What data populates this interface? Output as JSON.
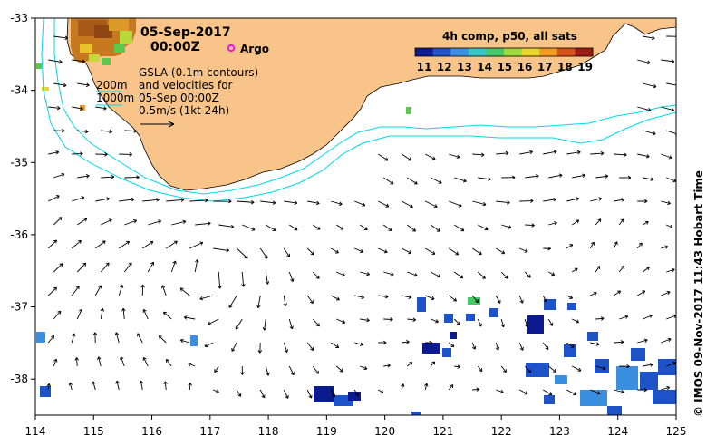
{
  "title": {
    "date": "05-Sep-2017",
    "time": "00:00Z"
  },
  "argo_label": "Argo",
  "colorbar": {
    "title": "4h comp, p50, all sats",
    "labels": [
      "11",
      "12",
      "13",
      "14",
      "15",
      "16",
      "17",
      "18",
      "19"
    ],
    "colors": [
      "#0b1a8c",
      "#1d52c8",
      "#3a8fe0",
      "#34c4c4",
      "#45c86a",
      "#9bd93c",
      "#e8d528",
      "#f39a1f",
      "#d84f18",
      "#9c1c14"
    ]
  },
  "legend": {
    "contour_200": "200m",
    "contour_1000": "1000m",
    "lines": [
      "GSLA (0.1m contours)",
      "and velocities for",
      "05-Sep 00:00Z",
      "0.5m/s (1kt 24h)"
    ]
  },
  "axes": {
    "x_ticks": [
      "114",
      "115",
      "116",
      "117",
      "118",
      "119",
      "120",
      "121",
      "122",
      "123",
      "124",
      "125"
    ],
    "y_ticks": [
      "-33",
      "-34",
      "-35",
      "-36",
      "-37",
      "-38"
    ],
    "lon_range": [
      114,
      125
    ],
    "lat_range": [
      -38.5,
      -33
    ]
  },
  "credit": "© IMOS 09-Nov-2017 11:43 Hobart Time",
  "colors": {
    "land": "#f8c48a",
    "isobath": "#00d8e8",
    "argo": "#ff00ff",
    "arrow": "#000000"
  }
}
